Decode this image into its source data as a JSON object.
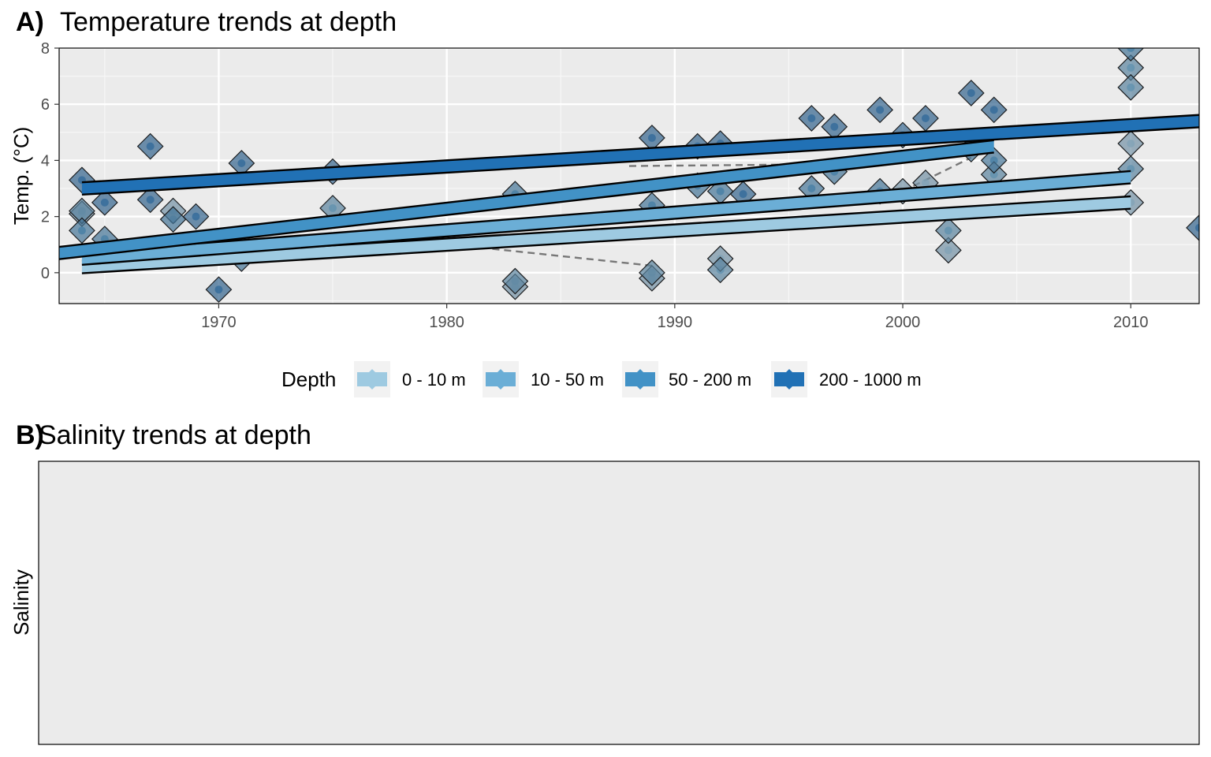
{
  "panel_a": {
    "tag": "A)",
    "title": "Temperature trends at depth"
  },
  "panel_b": {
    "tag": "B)",
    "title": "Salinity trends at depth",
    "ylabel": "Salinity"
  },
  "legend": {
    "title": "Depth"
  },
  "chart_data": [
    {
      "type": "scatter",
      "title": "Temperature trends at depth",
      "xlabel": "",
      "ylabel": "Temp. (°C)",
      "xlim": [
        1963,
        2013
      ],
      "ylim": [
        -1.1,
        8.0
      ],
      "x_ticks": [
        1970,
        1980,
        1990,
        2000,
        2010
      ],
      "y_ticks": [
        0,
        2,
        4,
        6,
        8
      ],
      "grid": true,
      "legend_position": "bottom",
      "series": [
        {
          "name": "0 - 10 m",
          "color": "#9ecae1",
          "trend": {
            "x": [
              1964,
              2010
            ],
            "y": [
              0.2,
              2.5
            ]
          },
          "points": [
            [
              1964,
              2.1
            ],
            [
              1968,
              2.2
            ],
            [
              1989,
              -0.2
            ],
            [
              1992,
              0.5
            ],
            [
              2000,
              2.9
            ],
            [
              2002,
              0.8
            ],
            [
              2010,
              4.6
            ],
            [
              2010,
              2.5
            ],
            [
              2001,
              3.2
            ],
            [
              1983,
              -0.5
            ]
          ]
        },
        {
          "name": "10 - 50 m",
          "color": "#6baed6",
          "trend": {
            "x": [
              1964,
              2010
            ],
            "y": [
              0.5,
              3.4
            ]
          },
          "points": [
            [
              1964,
              2.2
            ],
            [
              1975,
              2.3
            ],
            [
              1989,
              0.0
            ],
            [
              1992,
              0.1
            ],
            [
              2010,
              7.3
            ],
            [
              2010,
              6.6
            ],
            [
              2010,
              3.7
            ],
            [
              2004,
              3.5
            ],
            [
              2002,
              1.5
            ],
            [
              1983,
              -0.3
            ]
          ]
        },
        {
          "name": "50 - 200 m",
          "color": "#4292c6",
          "trend": {
            "x": [
              1963,
              2004
            ],
            "y": [
              0.7,
              4.5
            ]
          },
          "points": [
            [
              1964,
              1.5
            ],
            [
              1965,
              1.2
            ],
            [
              1968,
              1.9
            ],
            [
              1971,
              0.5
            ],
            [
              1983,
              2.8
            ],
            [
              1989,
              2.4
            ],
            [
              1991,
              3.1
            ],
            [
              1992,
              2.9
            ],
            [
              1996,
              3.0
            ],
            [
              1997,
              3.6
            ],
            [
              1999,
              2.9
            ],
            [
              2003,
              4.4
            ],
            [
              2004,
              4.0
            ],
            [
              2010,
              8.0
            ]
          ]
        },
        {
          "name": "200 - 1000 m",
          "color": "#2171b5",
          "trend": {
            "x": [
              1964,
              2013
            ],
            "y": [
              3.0,
              5.4
            ]
          },
          "points": [
            [
              1964,
              3.3
            ],
            [
              1965,
              2.5
            ],
            [
              1967,
              4.5
            ],
            [
              1967,
              2.6
            ],
            [
              1969,
              2.0
            ],
            [
              1970,
              -0.6
            ],
            [
              1971,
              3.9
            ],
            [
              1975,
              3.6
            ],
            [
              1989,
              4.8
            ],
            [
              1991,
              4.5
            ],
            [
              1992,
              4.6
            ],
            [
              1993,
              2.8
            ],
            [
              1996,
              5.5
            ],
            [
              1997,
              5.2
            ],
            [
              1999,
              5.8
            ],
            [
              2000,
              4.9
            ],
            [
              2001,
              5.5
            ],
            [
              2003,
              6.4
            ],
            [
              2004,
              5.8
            ],
            [
              2013,
              1.6
            ]
          ]
        }
      ]
    },
    {
      "type": "scatter",
      "title": "Salinity trends at depth",
      "ylabel": "Salinity",
      "series": []
    }
  ]
}
